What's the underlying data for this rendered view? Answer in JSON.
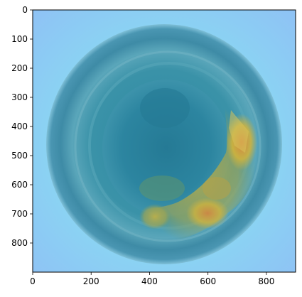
{
  "figure": {
    "image_kind": "top-down photo of a glass with a heatmap overlay",
    "colors": {
      "background_outer": "#8ec8f5",
      "glow": "#8de9f2",
      "rim_dark": "#3f8fa8",
      "rim_light": "#63acc0",
      "center": "#2f8aa2",
      "deep_center": "#257a95",
      "highlight": "#d4b43a",
      "highlight_hot": "#d9823d",
      "axis": "#000000"
    }
  },
  "axes": {
    "x": {
      "ticks": [
        0,
        200,
        400,
        600,
        800
      ],
      "range": [
        0,
        900
      ]
    },
    "y": {
      "ticks": [
        0,
        100,
        200,
        300,
        400,
        500,
        600,
        700,
        800
      ],
      "range": [
        900,
        0
      ]
    }
  }
}
